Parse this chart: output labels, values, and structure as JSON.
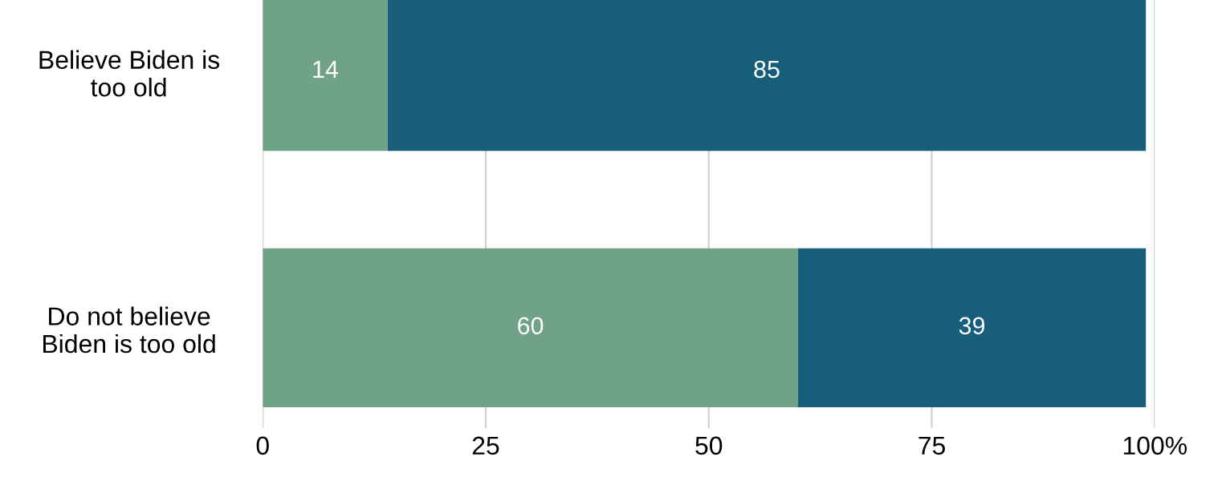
{
  "chart_data": {
    "type": "bar",
    "orientation": "horizontal",
    "stacked": true,
    "categories": [
      "Believe Biden is\ntoo old",
      "Do not believe\nBiden is too old"
    ],
    "series": [
      {
        "color": "#70a288",
        "values": [
          14,
          60
        ]
      },
      {
        "color": "#175e7a",
        "values": [
          85,
          39
        ]
      }
    ],
    "xlim": [
      0,
      100
    ],
    "xticks": [
      0,
      25,
      50,
      75,
      {
        "value": 100,
        "label": "100%"
      }
    ],
    "grid": "x",
    "data_labels": true
  }
}
